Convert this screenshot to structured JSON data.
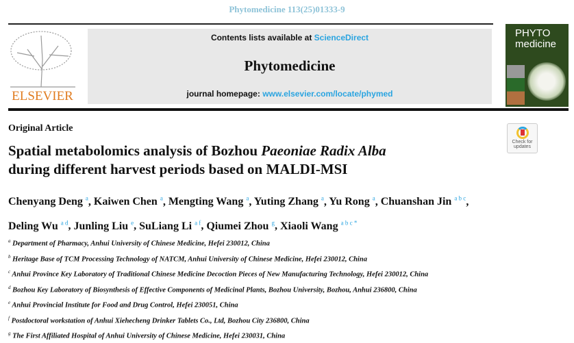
{
  "header": {
    "reference": "Phytomedicine 113(25)01333-9"
  },
  "masthead": {
    "publisher": "ELSEVIER",
    "contents_prefix": "Contents lists available at ",
    "contents_link": "ScienceDirect",
    "journal": "Phytomedicine",
    "homepage_prefix": "journal homepage: ",
    "homepage_link": "www.elsevier.com/locate/phymed",
    "cover_title_1": "PHYTO",
    "cover_title_2": "medicine"
  },
  "article": {
    "type": "Original Article",
    "title_1": "Spatial metabolomics analysis of Bozhou ",
    "title_italic": "Paeoniae Radix Alba",
    "title_2": "during different harvest periods based on  MALDI-MSI",
    "authors": [
      {
        "name": "Chenyang Deng",
        "aff": "a"
      },
      {
        "name": "Kaiwen Chen",
        "aff": "a"
      },
      {
        "name": "Mengting Wang",
        "aff": "a"
      },
      {
        "name": "Yuting Zhang",
        "aff": "a"
      },
      {
        "name": "Yu Rong",
        "aff": "a"
      },
      {
        "name": "Chuanshan Jin",
        "aff": "a b c"
      },
      {
        "name": "Deling Wu",
        "aff": "a d"
      },
      {
        "name": "Junling Liu",
        "aff": "e"
      },
      {
        "name": "SuLiang Li",
        "aff": "a f"
      },
      {
        "name": "Qiumei Zhou",
        "aff": "g"
      },
      {
        "name": "Xiaoli Wang",
        "aff": "a b c *"
      }
    ],
    "affiliations": [
      {
        "key": "a",
        "text": "Department of Pharmacy, Anhui University of Chinese Medicine, Hefei 230012, China"
      },
      {
        "key": "b",
        "text": "Heritage Base of TCM Processing Technology of NATCM, Anhui University of Chinese Medicine, Hefei 230012, China"
      },
      {
        "key": "c",
        "text": "Anhui Province Key Laboratory of Traditional Chinese Medicine Decoction Pieces of New Manufacturing Technology, Hefei 230012, China"
      },
      {
        "key": "d",
        "text": "Bozhou Key Laboratory of Biosynthesis of Effective Components of Medicinal Plants, Bozhou University, Bozhou, Anhui 236800, China"
      },
      {
        "key": "e",
        "text": "Anhui Provincial Institute for Food and Drug Control, Hefei 230051, China"
      },
      {
        "key": "f",
        "text": "Postdoctoral workstation of Anhui Xiehecheng Drinker Tablets Co., Ltd, Bozhou City 236800, China"
      },
      {
        "key": "g",
        "text": "The First Affiliated Hospital of Anhui University of Chinese Medicine, Hefei 230031, China"
      }
    ]
  },
  "badge": {
    "label_1": "Check for",
    "label_2": "updates"
  },
  "colors": {
    "link": "#2aa4e0",
    "elsevier": "#e07b1f",
    "reference": "#8ec3d8"
  }
}
